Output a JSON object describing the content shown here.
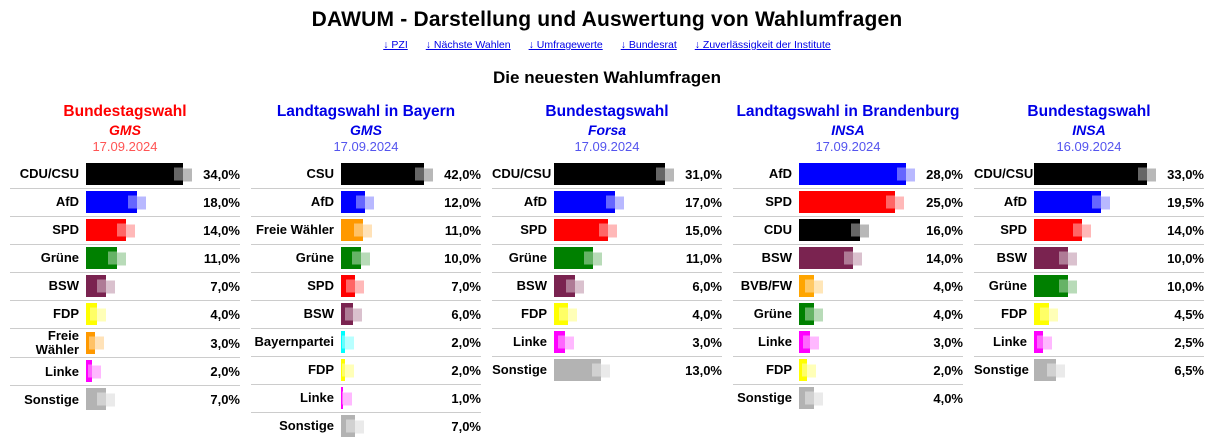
{
  "header": {
    "title": "DAWUM - Darstellung und Auswertung von Wahlumfragen",
    "link_arrow": "↓",
    "links": [
      "PZI",
      "Nächste Wahlen",
      "Umfragewerte",
      "Bundesrat",
      "Zuverlässigkeit der Institute"
    ],
    "link_color": "#0000e6"
  },
  "section": {
    "title": "Die neuesten Wahlumfragen"
  },
  "party_colors": {
    "CDU/CSU": "#000000",
    "CSU": "#000000",
    "CDU": "#000000",
    "AfD": "#0000ff",
    "SPD": "#ff0000",
    "Grüne": "#008000",
    "BSW": "#7a2350",
    "FDP": "#ffff00",
    "Freie Wähler": "#ff9900",
    "BVB/FW": "#ffa500",
    "Linke": "#ff00ff",
    "Bayernpartei": "#00ffff",
    "Sonstige": "#b3b3b3"
  },
  "chart_data": [
    {
      "type": "bar",
      "orientation": "horizontal",
      "title": "Bundestagswahl",
      "institute": "GMS",
      "date": "17.09.2024",
      "title_color": "#ff0000",
      "value_suffix": "%",
      "decimal_separator": ",",
      "categories": [
        "CDU/CSU",
        "AfD",
        "SPD",
        "Grüne",
        "BSW",
        "FDP",
        "Freie Wähler",
        "Linke",
        "Sonstige"
      ],
      "values": [
        34.0,
        18.0,
        14.0,
        11.0,
        7.0,
        4.0,
        3.0,
        2.0,
        7.0
      ]
    },
    {
      "type": "bar",
      "orientation": "horizontal",
      "title": "Landtagswahl in Bayern",
      "institute": "GMS",
      "date": "17.09.2024",
      "title_color": "#0000e6",
      "value_suffix": "%",
      "decimal_separator": ",",
      "categories": [
        "CSU",
        "AfD",
        "Freie Wähler",
        "Grüne",
        "SPD",
        "BSW",
        "Bayernpartei",
        "FDP",
        "Linke",
        "Sonstige"
      ],
      "values": [
        42.0,
        12.0,
        11.0,
        10.0,
        7.0,
        6.0,
        2.0,
        2.0,
        1.0,
        7.0
      ]
    },
    {
      "type": "bar",
      "orientation": "horizontal",
      "title": "Bundestagswahl",
      "institute": "Forsa",
      "date": "17.09.2024",
      "title_color": "#0000e6",
      "value_suffix": "%",
      "decimal_separator": ",",
      "categories": [
        "CDU/CSU",
        "AfD",
        "SPD",
        "Grüne",
        "BSW",
        "FDP",
        "Linke",
        "Sonstige"
      ],
      "values": [
        31.0,
        17.0,
        15.0,
        11.0,
        6.0,
        4.0,
        3.0,
        13.0
      ]
    },
    {
      "type": "bar",
      "orientation": "horizontal",
      "title": "Landtagswahl in Brandenburg",
      "institute": "INSA",
      "date": "17.09.2024",
      "title_color": "#0000e6",
      "value_suffix": "%",
      "decimal_separator": ",",
      "categories": [
        "AfD",
        "SPD",
        "CDU",
        "BSW",
        "BVB/FW",
        "Grüne",
        "Linke",
        "FDP",
        "Sonstige"
      ],
      "values": [
        28.0,
        25.0,
        16.0,
        14.0,
        4.0,
        4.0,
        3.0,
        2.0,
        4.0
      ]
    },
    {
      "type": "bar",
      "orientation": "horizontal",
      "title": "Bundestagswahl",
      "institute": "INSA",
      "date": "16.09.2024",
      "title_color": "#0000e6",
      "value_suffix": "%",
      "decimal_separator": ",",
      "categories": [
        "CDU/CSU",
        "AfD",
        "SPD",
        "BSW",
        "Grüne",
        "FDP",
        "Linke",
        "Sonstige"
      ],
      "values": [
        33.0,
        19.5,
        14.0,
        10.0,
        10.0,
        4.5,
        2.5,
        6.5
      ]
    }
  ]
}
